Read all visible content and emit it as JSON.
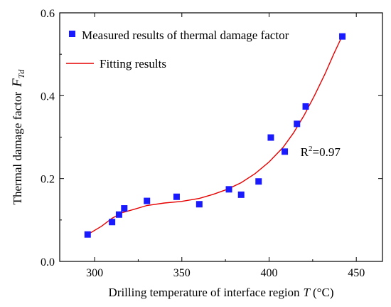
{
  "chart_data": {
    "type": "scatter",
    "xlabel": "Drilling temperature of interface region",
    "xlabel_var": "T",
    "xlabel_unit": "(°C)",
    "ylabel": "Thermal damage factor",
    "ylabel_var": "F",
    "ylabel_var_sub": "Td",
    "xlim": [
      280,
      465
    ],
    "ylim": [
      0.0,
      0.6
    ],
    "xticks": [
      300,
      350,
      400,
      450
    ],
    "yticks": [
      0.0,
      0.2,
      0.4,
      0.6
    ],
    "xtick_labels": [
      "300",
      "350",
      "400",
      "450"
    ],
    "ytick_labels": [
      "0.0",
      "0.2",
      "0.4",
      "0.6"
    ],
    "grid": false,
    "legend_position": "top-left",
    "series": [
      {
        "name": "Measured results of thermal damage factor",
        "kind": "markers",
        "color": "#1a1aff",
        "x": [
          296,
          310,
          314,
          317,
          330,
          347,
          360,
          377,
          384,
          394,
          401,
          409,
          416,
          421,
          442
        ],
        "y": [
          0.065,
          0.095,
          0.113,
          0.128,
          0.146,
          0.156,
          0.138,
          0.174,
          0.161,
          0.193,
          0.299,
          0.265,
          0.332,
          0.374,
          0.543
        ]
      },
      {
        "name": "Fitting results",
        "kind": "line",
        "color": "#e60000",
        "x": [
          296,
          304,
          310,
          316,
          322,
          330,
          340,
          350,
          360,
          368,
          376,
          384,
          392,
          400,
          408,
          414,
          420,
          426,
          432,
          437,
          442
        ],
        "y": [
          0.065,
          0.085,
          0.104,
          0.118,
          0.125,
          0.135,
          0.141,
          0.145,
          0.152,
          0.162,
          0.174,
          0.19,
          0.212,
          0.24,
          0.275,
          0.31,
          0.352,
          0.4,
          0.452,
          0.5,
          0.545
        ]
      }
    ],
    "annotations": [
      {
        "text_base": "R",
        "text_sup": "2",
        "text_rest": "=0.97",
        "x": 418,
        "y": 0.265
      }
    ]
  }
}
